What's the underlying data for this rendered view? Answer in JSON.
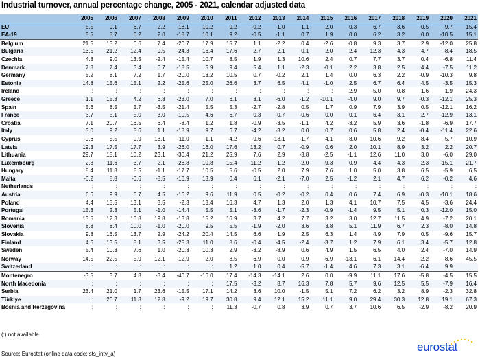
{
  "title": "Industrial turnover, annual percentage change, 2005 - 2021, calendar adjusted data",
  "years": [
    "2005",
    "2006",
    "2007",
    "2008",
    "2009",
    "2010",
    "2011",
    "2012",
    "2013",
    "2014",
    "2015",
    "2016",
    "2017",
    "2018",
    "2019",
    "2020",
    "2021"
  ],
  "aggregates": [
    {
      "name": "EU",
      "values": [
        "5.5",
        "9.1",
        "6.7",
        "2.2",
        "-18.1",
        "10.2",
        "9.2",
        "-0.2",
        "-1.0",
        "1.1",
        "2.0",
        "0.3",
        "6.7",
        "3.6",
        "0.5",
        "-9.7",
        "15.4"
      ]
    },
    {
      "name": "EA-19",
      "values": [
        "5.5",
        "8.7",
        "6.2",
        "2.0",
        "-18.7",
        "10.1",
        "9.2",
        "-0.5",
        "-1.1",
        "0.7",
        "1.9",
        "0.0",
        "6.2",
        "3.2",
        "0.0",
        "-10.5",
        "15.1"
      ]
    }
  ],
  "groups": [
    [
      {
        "name": "Belgium",
        "values": [
          "21.5",
          "15.2",
          "0.6",
          "7.4",
          "-20.7",
          "17.9",
          "15.7",
          "1.1",
          "-2.2",
          "0.4",
          "-2.6",
          "-0.8",
          "9.3",
          "3.7",
          "2.9",
          "-12.0",
          "25.8"
        ]
      },
      {
        "name": "Bulgaria",
        "values": [
          "13.5",
          "21.2",
          "12.4",
          "9.5",
          "-24.3",
          "16.4",
          "17.6",
          "2.7",
          "2.1",
          "0.1",
          "2.0",
          "2.4",
          "12.3",
          "4.3",
          "4.7",
          "-8.4",
          "18.5"
        ]
      },
      {
        "name": "Czechia",
        "values": [
          "4.8",
          "9.0",
          "13.5",
          "-2.4",
          "-15.4",
          "10.7",
          "8.5",
          "1.9",
          "1.3",
          "10.6",
          "2.4",
          "0.7",
          "7.7",
          "3.7",
          "0.4",
          "-6.8",
          "11.4"
        ]
      },
      {
        "name": "Denmark",
        "values": [
          "7.8",
          "7.4",
          "3.4",
          "6.7",
          "-18.5",
          "5.9",
          "9.4",
          "5.4",
          "1.1",
          "-2.3",
          "-0.1",
          "2.2",
          "3.8",
          "2.5",
          "4.4",
          "-7.5",
          "11.2"
        ]
      },
      {
        "name": "Germany",
        "values": [
          "5.2",
          "8.1",
          "7.2",
          "1.7",
          "-20.0",
          "13.2",
          "10.5",
          "0.7",
          "-0.2",
          "2.1",
          "1.4",
          "0.0",
          "6.3",
          "2.2",
          "-0.9",
          "-10.3",
          "9.8"
        ]
      },
      {
        "name": "Estonia",
        "values": [
          "14.8",
          "15.6",
          "15.1",
          "2.2",
          "-25.6",
          "25.0",
          "26.6",
          "3.7",
          "6.5",
          "4.1",
          "-1.0",
          "2.5",
          "6.7",
          "6.4",
          "4.5",
          "-3.5",
          "15.3"
        ]
      },
      {
        "name": "Ireland",
        "values": [
          ":",
          ":",
          ":",
          ":",
          ":",
          ":",
          ":",
          ":",
          ":",
          ":",
          ":",
          "2.9",
          "-5.0",
          "0.8",
          "1.6",
          "1.9",
          "24.3"
        ]
      },
      {
        "name": "Greece",
        "values": [
          "1.1",
          "15.3",
          "4.2",
          "6.8",
          "-23.0",
          "7.0",
          "6.1",
          "3.1",
          "-6.0",
          "-1.2",
          "-10.1",
          "-4.0",
          "9.0",
          "9.7",
          "-0.3",
          "-12.1",
          "25.3"
        ]
      },
      {
        "name": "Spain",
        "values": [
          "5.6",
          "8.5",
          "5.7",
          "-3.5",
          "-21.4",
          "5.5",
          "5.3",
          "-2.7",
          "-2.8",
          "0.5",
          "1.7",
          "0.9",
          "7.9",
          "3.9",
          "0.5",
          "-12.1",
          "16.2"
        ]
      },
      {
        "name": "France",
        "values": [
          "3.7",
          "5.1",
          "5.0",
          "3.0",
          "-10.5",
          "4.6",
          "6.7",
          "0.3",
          "-0.7",
          "-0.6",
          "0.0",
          "0.1",
          "6.4",
          "3.1",
          "2.7",
          "-12.9",
          "13.1"
        ]
      },
      {
        "name": "Croatia",
        "values": [
          "7.1",
          "20.7",
          "16.5",
          "6.4",
          "-8.4",
          "1.2",
          "1.8",
          "-0.9",
          "-3.5",
          "-1.1",
          "4.2",
          "-3.2",
          "5.9",
          "3.6",
          "-1.8",
          "-6.9",
          "17.7"
        ]
      },
      {
        "name": "Italy",
        "values": [
          "3.0",
          "9.2",
          "5.6",
          "1.1",
          "-18.9",
          "9.7",
          "6.7",
          "-4.2",
          "-3.2",
          "0.0",
          "0.7",
          "0.6",
          "5.8",
          "2.4",
          "-0.4",
          "-11.4",
          "22.6"
        ]
      },
      {
        "name": "Cyprus",
        "values": [
          "-0.6",
          "5.5",
          "9.9",
          "13.1",
          "-11.0",
          "-1.1",
          "-4.2",
          "-9.6",
          "-13.1",
          "-1.7",
          "4.1",
          "8.0",
          "10.6",
          "9.2",
          "8.4",
          "-5.7",
          "10.9"
        ]
      },
      {
        "name": "Latvia",
        "values": [
          "19.3",
          "17.5",
          "17.7",
          "3.9",
          "-26.0",
          "16.0",
          "17.6",
          "13.2",
          "0.7",
          "-0.9",
          "0.6",
          "2.0",
          "10.1",
          "8.9",
          "3.2",
          "2.2",
          "20.7"
        ]
      },
      {
        "name": "Lithuania",
        "values": [
          "29.7",
          "15.1",
          "10.2",
          "23.1",
          "-30.4",
          "21.2",
          "25.9",
          "7.6",
          "2.9",
          "-3.8",
          "-2.5",
          "-1.1",
          "12.6",
          "11.0",
          "3.0",
          "-6.0",
          "29.0"
        ]
      },
      {
        "name": "Luxembourg",
        "values": [
          "2.3",
          "11.6",
          "3.7",
          "2.1",
          "-26.8",
          "10.8",
          "15.4",
          "-11.2",
          "-1.2",
          "-2.0",
          "-9.3",
          "0.9",
          "4.4",
          "4.3",
          "-2.3",
          "-15.1",
          "21.7"
        ]
      },
      {
        "name": "Hungary",
        "values": [
          "8.4",
          "11.8",
          "8.5",
          "-1.1",
          "-17.7",
          "10.5",
          "5.6",
          "-0.5",
          "2.0",
          "7.9",
          "7.6",
          "1.0",
          "5.0",
          "3.8",
          "6.5",
          "-5.9",
          "6.5"
        ]
      },
      {
        "name": "Malta",
        "values": [
          "-6.2",
          "8.8",
          "-0.6",
          "-8.5",
          "-16.9",
          "13.9",
          "0.4",
          "6.1",
          "-2.1",
          "-7.0",
          "2.5",
          "-1.2",
          "2.1",
          "4.7",
          "6.2",
          "-0.2",
          "4.6"
        ]
      },
      {
        "name": "Netherlands",
        "values": [
          ":",
          ":",
          ":",
          ":",
          ":",
          ":",
          ":",
          ":",
          ":",
          ":",
          ":",
          ":",
          ":",
          ":",
          ":",
          ":",
          ":"
        ]
      },
      {
        "name": "Austria",
        "values": [
          "6.6",
          "9.9",
          "6.7",
          "4.5",
          "-16.2",
          "9.6",
          "11.9",
          "0.5",
          "-0.2",
          "-0.2",
          "0.4",
          "0.6",
          "7.4",
          "6.9",
          "-0.3",
          "-10.1",
          "18.6"
        ]
      },
      {
        "name": "Poland",
        "values": [
          "4.4",
          "15.5",
          "13.1",
          "3.5",
          "-2.3",
          "13.4",
          "16.3",
          "4.7",
          "1.3",
          "2.0",
          "1.3",
          "4.1",
          "10.7",
          "7.5",
          "4.5",
          "-3.6",
          "24.4"
        ]
      },
      {
        "name": "Portugal",
        "values": [
          "15.3",
          "2.3",
          "5.1",
          "-1.0",
          "-14.4",
          "5.5",
          "5.1",
          "-3.6",
          "-1.7",
          "-2.3",
          "-0.9",
          "-1.4",
          "9.5",
          "5.1",
          "0.3",
          "-12.0",
          "15.0"
        ]
      },
      {
        "name": "Romania",
        "values": [
          "13.5",
          "12.3",
          "16.8",
          "19.8",
          "-13.8",
          "15.2",
          "16.9",
          "3.7",
          "4.2",
          "7.7",
          "3.2",
          "3.0",
          "12.7",
          "11.5",
          "4.9",
          "-7.2",
          "20.1"
        ]
      },
      {
        "name": "Slovenia",
        "values": [
          "8.8",
          "8.4",
          "10.0",
          "-1.0",
          "-20.0",
          "9.5",
          "5.5",
          "-1.9",
          "-2.0",
          "3.6",
          "3.8",
          "5.1",
          "11.9",
          "6.7",
          "2.3",
          "-8.0",
          "14.8"
        ]
      },
      {
        "name": "Slovakia",
        "values": [
          "9.8",
          "16.5",
          "13.7",
          "2.9",
          "-24.2",
          "20.4",
          "14.5",
          "6.6",
          "1.9",
          "2.5",
          "6.3",
          "1.4",
          "4.9",
          "7.9",
          "0.5",
          "-9.6",
          "15.7"
        ]
      },
      {
        "name": "Finland",
        "values": [
          "4.6",
          "13.5",
          "8.1",
          "3.5",
          "-25.3",
          "11.0",
          "8.6",
          "-0.4",
          "-4.5",
          "-2.4",
          "-3.7",
          "1.2",
          "7.9",
          "6.1",
          "3.4",
          "-5.7",
          "12.8"
        ]
      },
      {
        "name": "Sweden",
        "values": [
          "5.4",
          "10.3",
          "7.6",
          "1.0",
          "-20.3",
          "10.3",
          "2.9",
          "-3.2",
          "-8.9",
          "0.6",
          "4.9",
          "1.5",
          "6.5",
          "4.0",
          "2.4",
          "-7.0",
          "14.9"
        ]
      }
    ],
    [
      {
        "name": "Norway",
        "values": [
          "14.5",
          "22.5",
          "5.9",
          "12.1",
          "-12.9",
          "2.0",
          "8.5",
          "6.9",
          "0.0",
          "0.9",
          "-6.9",
          "-13.1",
          "6.1",
          "14.4",
          "-2.2",
          "-8.6",
          "45.5"
        ]
      },
      {
        "name": "Switzerland",
        "values": [
          ":",
          ":",
          ":",
          ":",
          ":",
          ":",
          "1.2",
          "1.0",
          "0.4",
          "-5.7",
          "-1.4",
          "4.6",
          "7.3",
          "3.1",
          "-6.4",
          "9.9",
          ""
        ]
      }
    ],
    [
      {
        "name": "Montenegro",
        "values": [
          "-3.5",
          "3.7",
          "4.8",
          "-3.4",
          "-40.7",
          "-16.0",
          "17.4",
          "-14.3",
          "-14.1",
          "2.6",
          "0.0",
          "-9.9",
          "11.1",
          "17.6",
          "-5.8",
          "-4.5",
          "15.5"
        ]
      },
      {
        "name": "North Macedonia",
        "values": [
          ":",
          ":",
          ":",
          ":",
          ":",
          ":",
          "17.5",
          "-3.2",
          "8.7",
          "16.3",
          "7.8",
          "5.7",
          "9.6",
          "12.5",
          "5.5",
          "-7.9",
          "16.4"
        ]
      },
      {
        "name": "Serbia",
        "values": [
          "23.4",
          "21.0",
          "1.7",
          "23.6",
          "-15.5",
          "17.1",
          "14.2",
          "3.6",
          "10.0",
          "-1.5",
          "5.1",
          "7.2",
          "6.2",
          "3.2",
          "8.9",
          "-2.3",
          "32.8"
        ]
      },
      {
        "name": "Türkiye",
        "values": [
          ":",
          "20.7",
          "11.8",
          "12.8",
          "-9.2",
          "19.7",
          "30.8",
          "9.4",
          "12.1",
          "15.2",
          "11.1",
          "9.0",
          "29.4",
          "30.3",
          "12.8",
          "19.1",
          "67.3"
        ]
      },
      {
        "name": "Bosnia and Herzegovina",
        "values": [
          ":",
          ":",
          ":",
          ":",
          ":",
          ":",
          "11.3",
          "-0.7",
          "0.8",
          "3.9",
          "0.7",
          "3.7",
          "10.6",
          "6.5",
          "-2.9",
          "-8.2",
          "20.9"
        ]
      }
    ]
  ],
  "note": "(:) not available",
  "source": "Source: Eurostat (online data code: sts_intv_a)",
  "logo_text": "eurostat"
}
